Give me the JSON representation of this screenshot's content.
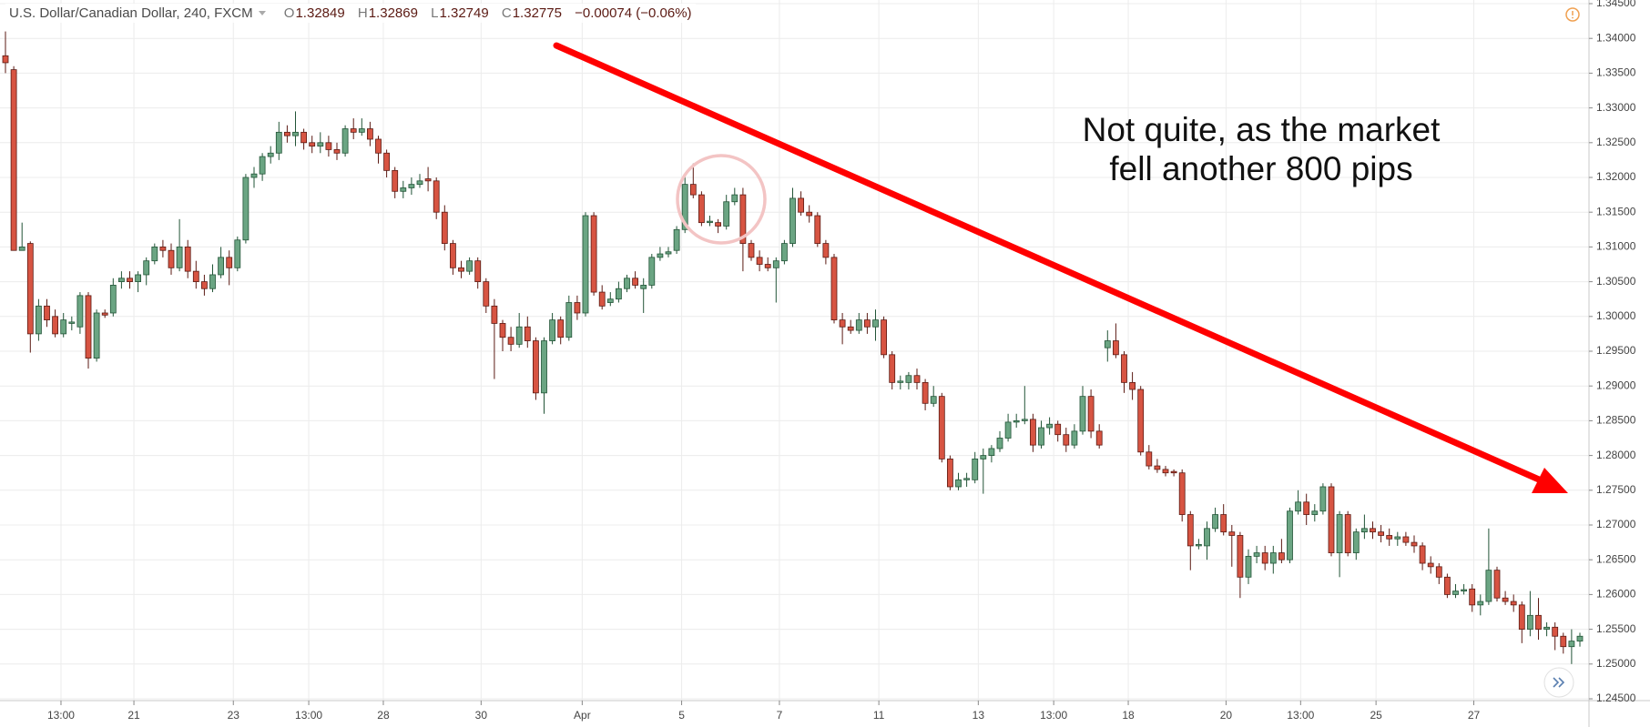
{
  "header": {
    "symbol": "U.S. Dollar/Canadian Dollar, 240, FXCM",
    "open_label": "O",
    "open": "1.32849",
    "high_label": "H",
    "high": "1.32869",
    "low_label": "L",
    "low": "1.32749",
    "close_label": "C",
    "close": "1.32775",
    "change": "−0.00074 (−0.06%)"
  },
  "chart_data": {
    "type": "candlestick",
    "annotations": [
      "Not quite, as the market",
      "fell another 800 pips"
    ],
    "up_color": "#6ba583",
    "up_border": "#225437",
    "down_color": "#d75442",
    "down_border": "#5b1a13",
    "grid": true,
    "xlim": [
      -0.66,
      191.1
    ],
    "xticks": [
      {
        "value": 6.7,
        "label": "13:00"
      },
      {
        "value": 15.5,
        "label": "21"
      },
      {
        "value": 27.5,
        "label": "23"
      },
      {
        "value": 36.6,
        "label": "13:00"
      },
      {
        "value": 45.6,
        "label": "28"
      },
      {
        "value": 57.4,
        "label": "30"
      },
      {
        "value": 69.6,
        "label": "Apr"
      },
      {
        "value": 81.6,
        "label": "5"
      },
      {
        "value": 93.4,
        "label": "7"
      },
      {
        "value": 105.4,
        "label": "11"
      },
      {
        "value": 117.4,
        "label": "13"
      },
      {
        "value": 126.5,
        "label": "13:00"
      },
      {
        "value": 135.5,
        "label": "18"
      },
      {
        "value": 147.3,
        "label": "20"
      },
      {
        "value": 156.3,
        "label": "13:00"
      },
      {
        "value": 165.4,
        "label": "25"
      },
      {
        "value": 177.2,
        "label": "27"
      }
    ],
    "ylim": [
      1.245,
      1.345
    ],
    "yticks": [
      {
        "value": 1.345,
        "label": "1.34500"
      },
      {
        "value": 1.34,
        "label": "1.34000"
      },
      {
        "value": 1.335,
        "label": "1.33500"
      },
      {
        "value": 1.33,
        "label": "1.33000"
      },
      {
        "value": 1.325,
        "label": "1.32500"
      },
      {
        "value": 1.32,
        "label": "1.32000"
      },
      {
        "value": 1.315,
        "label": "1.31500"
      },
      {
        "value": 1.31,
        "label": "1.31000"
      },
      {
        "value": 1.305,
        "label": "1.30500"
      },
      {
        "value": 1.3,
        "label": "1.30000"
      },
      {
        "value": 1.295,
        "label": "1.29500"
      },
      {
        "value": 1.29,
        "label": "1.29000"
      },
      {
        "value": 1.285,
        "label": "1.28500"
      },
      {
        "value": 1.28,
        "label": "1.28000"
      },
      {
        "value": 1.275,
        "label": "1.27500"
      },
      {
        "value": 1.27,
        "label": "1.27000"
      },
      {
        "value": 1.265,
        "label": "1.26500"
      },
      {
        "value": 1.26,
        "label": "1.26000"
      },
      {
        "value": 1.255,
        "label": "1.25500"
      },
      {
        "value": 1.25,
        "label": "1.25000"
      },
      {
        "value": 1.245,
        "label": "1.24500"
      }
    ],
    "ohlc": [
      [
        1.3375,
        1.341,
        1.335,
        1.3365
      ],
      [
        1.3355,
        1.336,
        1.3095,
        1.3095
      ],
      [
        1.3095,
        1.3135,
        1.3095,
        1.31
      ],
      [
        1.3105,
        1.3108,
        1.2948,
        1.2975
      ],
      [
        1.2975,
        1.3025,
        1.2965,
        1.3015
      ],
      [
        1.3015,
        1.3025,
        1.2985,
        1.2995
      ],
      [
        1.3,
        1.301,
        1.297,
        1.2975
      ],
      [
        1.2975,
        1.3005,
        1.297,
        1.2995
      ],
      [
        1.299,
        1.3,
        1.298,
        1.2992
      ],
      [
        1.2985,
        1.3035,
        1.2975,
        1.303
      ],
      [
        1.303,
        1.3035,
        1.2925,
        1.294
      ],
      [
        1.294,
        1.301,
        1.2935,
        1.3005
      ],
      [
        1.3005,
        1.301,
        1.2998,
        1.3002
      ],
      [
        1.3005,
        1.3055,
        1.3,
        1.3045
      ],
      [
        1.305,
        1.3065,
        1.304,
        1.3055
      ],
      [
        1.3055,
        1.3065,
        1.304,
        1.305
      ],
      [
        1.305,
        1.3065,
        1.3035,
        1.306
      ],
      [
        1.306,
        1.3085,
        1.3045,
        1.308
      ],
      [
        1.308,
        1.3105,
        1.3075,
        1.31
      ],
      [
        1.31,
        1.311,
        1.3085,
        1.3095
      ],
      [
        1.3095,
        1.3105,
        1.306,
        1.307
      ],
      [
        1.307,
        1.314,
        1.3065,
        1.31
      ],
      [
        1.31,
        1.311,
        1.3055,
        1.3065
      ],
      [
        1.3065,
        1.308,
        1.304,
        1.305
      ],
      [
        1.305,
        1.306,
        1.303,
        1.304
      ],
      [
        1.304,
        1.3075,
        1.3035,
        1.306
      ],
      [
        1.306,
        1.31,
        1.3055,
        1.3085
      ],
      [
        1.3085,
        1.3095,
        1.3045,
        1.307
      ],
      [
        1.307,
        1.3115,
        1.3065,
        1.311
      ],
      [
        1.311,
        1.3205,
        1.3105,
        1.32
      ],
      [
        1.32,
        1.3215,
        1.3185,
        1.3205
      ],
      [
        1.3205,
        1.3235,
        1.3195,
        1.323
      ],
      [
        1.323,
        1.3245,
        1.322,
        1.3235
      ],
      [
        1.3235,
        1.328,
        1.3225,
        1.3265
      ],
      [
        1.3265,
        1.3275,
        1.325,
        1.326
      ],
      [
        1.326,
        1.3295,
        1.3245,
        1.3265
      ],
      [
        1.3265,
        1.327,
        1.324,
        1.325
      ],
      [
        1.325,
        1.326,
        1.3235,
        1.3245
      ],
      [
        1.3245,
        1.3265,
        1.3235,
        1.325
      ],
      [
        1.325,
        1.326,
        1.323,
        1.324
      ],
      [
        1.324,
        1.325,
        1.3225,
        1.3235
      ],
      [
        1.3235,
        1.3275,
        1.323,
        1.327
      ],
      [
        1.327,
        1.3285,
        1.3255,
        1.3265
      ],
      [
        1.3265,
        1.3285,
        1.326,
        1.327
      ],
      [
        1.327,
        1.328,
        1.3245,
        1.3255
      ],
      [
        1.3255,
        1.326,
        1.322,
        1.3235
      ],
      [
        1.3235,
        1.324,
        1.32,
        1.321
      ],
      [
        1.321,
        1.3215,
        1.317,
        1.318
      ],
      [
        1.318,
        1.3195,
        1.317,
        1.3185
      ],
      [
        1.3185,
        1.32,
        1.3175,
        1.319
      ],
      [
        1.319,
        1.3205,
        1.3185,
        1.3195
      ],
      [
        1.3198,
        1.3215,
        1.318,
        1.3195
      ],
      [
        1.3195,
        1.32,
        1.314,
        1.315
      ],
      [
        1.315,
        1.316,
        1.3095,
        1.3105
      ],
      [
        1.3105,
        1.311,
        1.306,
        1.307
      ],
      [
        1.307,
        1.308,
        1.3055,
        1.3065
      ],
      [
        1.3065,
        1.3085,
        1.306,
        1.308
      ],
      [
        1.308,
        1.3085,
        1.304,
        1.305
      ],
      [
        1.305,
        1.3055,
        1.3005,
        1.3015
      ],
      [
        1.3015,
        1.3025,
        1.291,
        1.299
      ],
      [
        1.299,
        1.2995,
        1.295,
        1.297
      ],
      [
        1.297,
        1.2985,
        1.295,
        1.296
      ],
      [
        1.296,
        1.3005,
        1.2955,
        1.2985
      ],
      [
        1.2985,
        1.3,
        1.2955,
        1.2965
      ],
      [
        1.2965,
        1.297,
        1.288,
        1.289
      ],
      [
        1.289,
        1.297,
        1.286,
        1.2965
      ],
      [
        1.2965,
        1.3005,
        1.296,
        1.2995
      ],
      [
        1.2995,
        1.3,
        1.296,
        1.297
      ],
      [
        1.297,
        1.303,
        1.2965,
        1.302
      ],
      [
        1.302,
        1.303,
        1.2995,
        1.3005
      ],
      [
        1.3005,
        1.315,
        1.3,
        1.3145
      ],
      [
        1.3145,
        1.315,
        1.303,
        1.3035
      ],
      [
        1.3035,
        1.3045,
        1.301,
        1.3015
      ],
      [
        1.302,
        1.3035,
        1.3015,
        1.3025
      ],
      [
        1.3025,
        1.305,
        1.302,
        1.304
      ],
      [
        1.304,
        1.306,
        1.3035,
        1.3055
      ],
      [
        1.3055,
        1.3065,
        1.304,
        1.3045
      ],
      [
        1.304,
        1.3055,
        1.3005,
        1.3045
      ],
      [
        1.3045,
        1.309,
        1.304,
        1.3085
      ],
      [
        1.3085,
        1.31,
        1.308,
        1.309
      ],
      [
        1.309,
        1.31,
        1.3085,
        1.3093
      ],
      [
        1.3095,
        1.313,
        1.309,
        1.3125
      ],
      [
        1.3125,
        1.3205,
        1.312,
        1.319
      ],
      [
        1.319,
        1.322,
        1.317,
        1.3175
      ],
      [
        1.3175,
        1.318,
        1.313,
        1.3135
      ],
      [
        1.3135,
        1.3145,
        1.313,
        1.3137
      ],
      [
        1.3135,
        1.314,
        1.312,
        1.313
      ],
      [
        1.313,
        1.3175,
        1.3125,
        1.3165
      ],
      [
        1.3165,
        1.3185,
        1.316,
        1.3175
      ],
      [
        1.3175,
        1.3185,
        1.3065,
        1.3105
      ],
      [
        1.3105,
        1.311,
        1.308,
        1.3085
      ],
      [
        1.3085,
        1.3095,
        1.3065,
        1.3075
      ],
      [
        1.3075,
        1.3085,
        1.3065,
        1.307
      ],
      [
        1.307,
        1.3085,
        1.302,
        1.308
      ],
      [
        1.308,
        1.311,
        1.3075,
        1.3105
      ],
      [
        1.3105,
        1.3185,
        1.31,
        1.317
      ],
      [
        1.317,
        1.318,
        1.3145,
        1.315
      ],
      [
        1.315,
        1.316,
        1.3135,
        1.3145
      ],
      [
        1.3145,
        1.315,
        1.31,
        1.3105
      ],
      [
        1.3105,
        1.311,
        1.3075,
        1.3085
      ],
      [
        1.3085,
        1.309,
        1.299,
        1.2995
      ],
      [
        1.2995,
        1.3005,
        1.296,
        1.2985
      ],
      [
        1.2985,
        1.2995,
        1.2975,
        1.298
      ],
      [
        1.298,
        1.3005,
        1.2975,
        1.2995
      ],
      [
        1.2995,
        1.3005,
        1.2975,
        1.2985
      ],
      [
        1.2985,
        1.301,
        1.2965,
        1.2995
      ],
      [
        1.2995,
        1.3,
        1.294,
        1.2945
      ],
      [
        1.2945,
        1.295,
        1.2895,
        1.2905
      ],
      [
        1.2905,
        1.2915,
        1.2895,
        1.2907
      ],
      [
        1.2905,
        1.292,
        1.2895,
        1.2915
      ],
      [
        1.2915,
        1.2925,
        1.2895,
        1.2905
      ],
      [
        1.2905,
        1.291,
        1.2865,
        1.2875
      ],
      [
        1.2875,
        1.29,
        1.287,
        1.2885
      ],
      [
        1.2885,
        1.289,
        1.279,
        1.2795
      ],
      [
        1.2795,
        1.28,
        1.275,
        1.2755
      ],
      [
        1.2755,
        1.2775,
        1.275,
        1.2765
      ],
      [
        1.2765,
        1.2775,
        1.2755,
        1.2767
      ],
      [
        1.2765,
        1.2805,
        1.276,
        1.2795
      ],
      [
        1.2795,
        1.281,
        1.2745,
        1.28
      ],
      [
        1.28,
        1.2815,
        1.279,
        1.281
      ],
      [
        1.281,
        1.2835,
        1.2805,
        1.2825
      ],
      [
        1.2825,
        1.286,
        1.282,
        1.2848
      ],
      [
        1.2848,
        1.286,
        1.284,
        1.285
      ],
      [
        1.285,
        1.29,
        1.2845,
        1.2852
      ],
      [
        1.2852,
        1.286,
        1.2805,
        1.2815
      ],
      [
        1.2815,
        1.285,
        1.281,
        1.284
      ],
      [
        1.284,
        1.2855,
        1.283,
        1.2845
      ],
      [
        1.2845,
        1.285,
        1.282,
        1.283
      ],
      [
        1.283,
        1.284,
        1.2805,
        1.2815
      ],
      [
        1.2815,
        1.2845,
        1.281,
        1.2835
      ],
      [
        1.2835,
        1.29,
        1.283,
        1.2885
      ],
      [
        1.2885,
        1.2895,
        1.2825,
        1.2835
      ],
      [
        1.2835,
        1.2845,
        1.281,
        1.2815
      ],
      [
        1.2955,
        1.298,
        1.2935,
        1.2965
      ],
      [
        1.2965,
        1.299,
        1.294,
        1.2945
      ],
      [
        1.2945,
        1.295,
        1.289,
        1.2905
      ],
      [
        1.2905,
        1.292,
        1.288,
        1.2895
      ],
      [
        1.2895,
        1.29,
        1.28,
        1.2805
      ],
      [
        1.2805,
        1.2815,
        1.278,
        1.2785
      ],
      [
        1.2785,
        1.2795,
        1.2775,
        1.278
      ],
      [
        1.278,
        1.2785,
        1.277,
        1.2775
      ],
      [
        1.2777,
        1.278,
        1.277,
        1.2775
      ],
      [
        1.2775,
        1.278,
        1.2705,
        1.2715
      ],
      [
        1.2715,
        1.272,
        1.2635,
        1.267
      ],
      [
        1.267,
        1.268,
        1.2665,
        1.2672
      ],
      [
        1.267,
        1.2705,
        1.265,
        1.2695
      ],
      [
        1.2695,
        1.2725,
        1.269,
        1.2715
      ],
      [
        1.2715,
        1.273,
        1.2685,
        1.269
      ],
      [
        1.269,
        1.27,
        1.264,
        1.2685
      ],
      [
        1.2685,
        1.269,
        1.2595,
        1.2625
      ],
      [
        1.2625,
        1.2665,
        1.2615,
        1.2655
      ],
      [
        1.2655,
        1.267,
        1.2645,
        1.266
      ],
      [
        1.266,
        1.267,
        1.2635,
        1.2645
      ],
      [
        1.2645,
        1.267,
        1.263,
        1.266
      ],
      [
        1.266,
        1.268,
        1.2645,
        1.265
      ],
      [
        1.265,
        1.2725,
        1.2645,
        1.272
      ],
      [
        1.272,
        1.275,
        1.2715,
        1.2733
      ],
      [
        1.2733,
        1.2745,
        1.27,
        1.2715
      ],
      [
        1.2715,
        1.273,
        1.2705,
        1.272
      ],
      [
        1.272,
        1.276,
        1.2715,
        1.2755
      ],
      [
        1.2755,
        1.276,
        1.2655,
        1.266
      ],
      [
        1.266,
        1.272,
        1.2625,
        1.2715
      ],
      [
        1.2715,
        1.272,
        1.2655,
        1.266
      ],
      [
        1.266,
        1.2695,
        1.265,
        1.269
      ],
      [
        1.269,
        1.2715,
        1.268,
        1.2695
      ],
      [
        1.2695,
        1.2705,
        1.268,
        1.269
      ],
      [
        1.269,
        1.27,
        1.2675,
        1.2685
      ],
      [
        1.2685,
        1.2695,
        1.267,
        1.268
      ],
      [
        1.268,
        1.269,
        1.267,
        1.2683
      ],
      [
        1.2683,
        1.269,
        1.267,
        1.2675
      ],
      [
        1.2675,
        1.2685,
        1.266,
        1.267
      ],
      [
        1.267,
        1.2675,
        1.2635,
        1.2645
      ],
      [
        1.2645,
        1.2655,
        1.263,
        1.264
      ],
      [
        1.264,
        1.2645,
        1.2615,
        1.2625
      ],
      [
        1.2625,
        1.263,
        1.2595,
        1.26
      ],
      [
        1.26,
        1.2615,
        1.2595,
        1.2605
      ],
      [
        1.2605,
        1.2615,
        1.26,
        1.2607
      ],
      [
        1.2608,
        1.2615,
        1.2575,
        1.2585
      ],
      [
        1.2585,
        1.26,
        1.257,
        1.259
      ],
      [
        1.259,
        1.2695,
        1.2585,
        1.2635
      ],
      [
        1.2635,
        1.264,
        1.259,
        1.2595
      ],
      [
        1.2595,
        1.2605,
        1.2585,
        1.259
      ],
      [
        1.259,
        1.26,
        1.2575,
        1.2585
      ],
      [
        1.2585,
        1.259,
        1.253,
        1.255
      ],
      [
        1.255,
        1.2605,
        1.254,
        1.257
      ],
      [
        1.257,
        1.2595,
        1.2535,
        1.255
      ],
      [
        1.255,
        1.256,
        1.254,
        1.2553
      ],
      [
        1.2553,
        1.256,
        1.252,
        1.254
      ],
      [
        1.254,
        1.2545,
        1.2515,
        1.2525
      ],
      [
        1.2525,
        1.255,
        1.25,
        1.2533
      ],
      [
        1.2533,
        1.2545,
        1.2525,
        1.254
      ]
    ]
  }
}
